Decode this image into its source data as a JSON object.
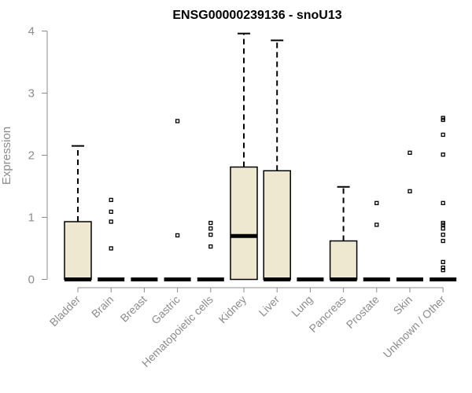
{
  "chart_data": {
    "type": "boxplot",
    "title": "ENSG00000239136 - snoU13",
    "xlabel": "",
    "ylabel": "Expression",
    "ylim": [
      0,
      4
    ],
    "yticks": [
      "0",
      "1",
      "2",
      "3",
      "4"
    ],
    "box_fill": "#efe8d0",
    "categories": [
      "Bladder",
      "Brain",
      "Breast",
      "Gastric",
      "Hematopoietic cells",
      "Kidney",
      "Liver",
      "Lung",
      "Pancreas",
      "Prostate",
      "Skin",
      "Unknown / Other"
    ],
    "boxes": [
      {
        "q1": 0,
        "median": 0,
        "q3": 0.93,
        "whisker_low": 0,
        "whisker_high": 2.15,
        "outliers": []
      },
      {
        "q1": 0,
        "median": 0,
        "q3": 0,
        "whisker_low": 0,
        "whisker_high": 0,
        "outliers": [
          0.5,
          0.93,
          1.09,
          1.28
        ]
      },
      {
        "q1": 0,
        "median": 0,
        "q3": 0,
        "whisker_low": 0,
        "whisker_high": 0,
        "outliers": []
      },
      {
        "q1": 0,
        "median": 0,
        "q3": 0,
        "whisker_low": 0,
        "whisker_high": 0,
        "outliers": [
          0.71,
          2.55
        ]
      },
      {
        "q1": 0,
        "median": 0,
        "q3": 0,
        "whisker_low": 0,
        "whisker_high": 0,
        "outliers": [
          0.53,
          0.72,
          0.82,
          0.91
        ]
      },
      {
        "q1": 0,
        "median": 0.7,
        "q3": 1.81,
        "whisker_low": 0,
        "whisker_high": 3.96,
        "outliers": []
      },
      {
        "q1": 0,
        "median": 0,
        "q3": 1.75,
        "whisker_low": 0,
        "whisker_high": 3.85,
        "outliers": []
      },
      {
        "q1": 0,
        "median": 0,
        "q3": 0,
        "whisker_low": 0,
        "whisker_high": 0,
        "outliers": []
      },
      {
        "q1": 0,
        "median": 0,
        "q3": 0.62,
        "whisker_low": 0,
        "whisker_high": 1.49,
        "outliers": []
      },
      {
        "q1": 0,
        "median": 0,
        "q3": 0,
        "whisker_low": 0,
        "whisker_high": 0,
        "outliers": [
          0.88,
          1.23
        ]
      },
      {
        "q1": 0,
        "median": 0,
        "q3": 0,
        "whisker_low": 0,
        "whisker_high": 0,
        "outliers": [
          1.42,
          2.04
        ]
      },
      {
        "q1": 0,
        "median": 0,
        "q3": 0,
        "whisker_low": 0,
        "whisker_high": 0,
        "outliers": [
          0.15,
          0.19,
          0.28,
          0.62,
          0.72,
          0.82,
          0.88,
          0.91,
          1.23,
          2.01,
          2.33,
          2.57,
          2.6
        ]
      }
    ]
  }
}
